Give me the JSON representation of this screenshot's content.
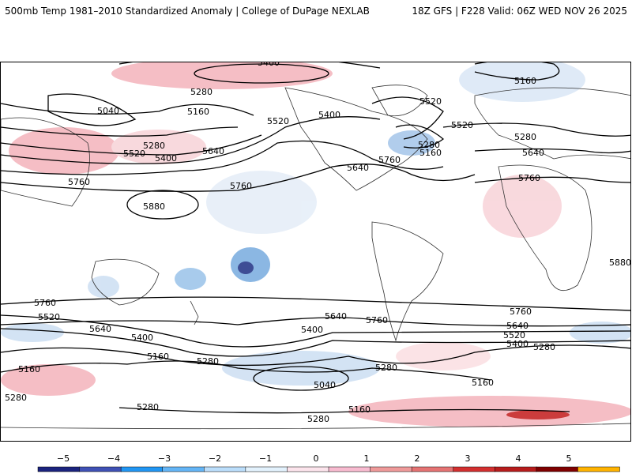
{
  "header": {
    "title": "500mb Temp 1981–2010 Standardized Anomaly | College of DuPage NEXLAB",
    "run_info": "18Z GFS | F228 Valid: 06Z WED NOV 26 2025"
  },
  "map": {
    "contour_labels": [
      "5280",
      "5400",
      "5280",
      "5160",
      "5040",
      "5520",
      "5400",
      "5160",
      "5280",
      "5280",
      "5520",
      "5400",
      "5280",
      "5640",
      "5520",
      "5640",
      "5760",
      "5760",
      "5640",
      "5760",
      "5880",
      "5880",
      "5760",
      "5520",
      "5640",
      "5400",
      "5760",
      "5520",
      "5280",
      "5160",
      "5400",
      "5640",
      "5760",
      "5760",
      "5640",
      "5520",
      "5400",
      "5280",
      "5160",
      "5280",
      "5040",
      "5160",
      "5280",
      "5280",
      "5280",
      "5160",
      "5160"
    ]
  },
  "colorbar": {
    "ticks": [
      "−5",
      "−4",
      "−3",
      "−2",
      "−1",
      "0",
      "1",
      "2",
      "3",
      "4",
      "5"
    ],
    "colors": [
      "#1a237e",
      "#3f51b5",
      "#2196f3",
      "#64b5f6",
      "#bbdefb",
      "#e3f2fd",
      "#fce4ec",
      "#f8bbd0",
      "#ef9a9a",
      "#e57373",
      "#d32f2f",
      "#b71c1c",
      "#7f0000",
      "#ffb300"
    ]
  }
}
